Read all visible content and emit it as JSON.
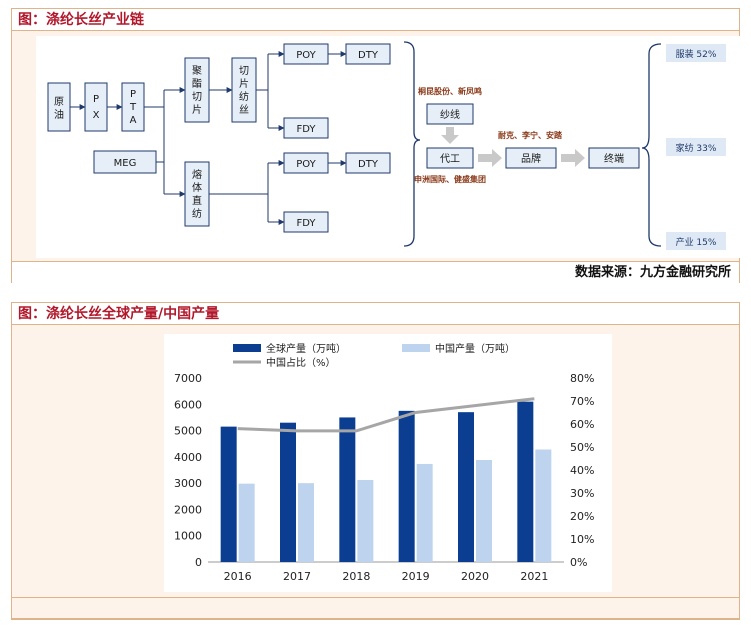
{
  "figure1": {
    "title": "图：涤纶长丝产业链",
    "source": "数据来源：九方金融研究所",
    "flow": {
      "crude": "原油",
      "px": "PX",
      "pta": "PTA",
      "meg": "MEG",
      "chip": "聚酯切片",
      "chip_spin": "切片纺丝",
      "melt": "熔体直纺",
      "poy1": "POY",
      "dty1": "DTY",
      "fdy1": "FDY",
      "poy2": "POY",
      "dty2": "DTY",
      "fdy2": "FDY",
      "company_top": "桐昆股份、新凤鸣",
      "yarn": "纱线",
      "oem": "代工",
      "company_bottom": "申洲国际、健盛集团",
      "brand_company": "耐克、李宁、安踏",
      "brand": "品牌",
      "terminal": "终端",
      "end_uses": [
        {
          "label": "服装 52%"
        },
        {
          "label": "家纺 33%"
        },
        {
          "label": "产业 15%"
        }
      ]
    }
  },
  "figure2": {
    "title": "图：涤纶长丝全球产量/中国产量",
    "legend": {
      "global": "全球产量（万吨）",
      "china": "中国产量（万吨）",
      "share": "中国占比（%）"
    },
    "colors": {
      "global": "#0b3d91",
      "china": "#bdd3ee",
      "share": "#a6a6a6"
    },
    "chart_data": {
      "type": "bar",
      "categories": [
        "2016",
        "2017",
        "2018",
        "2019",
        "2020",
        "2021"
      ],
      "series": [
        {
          "name": "全球产量（万吨）",
          "type": "bar",
          "axis": "left",
          "values": [
            5150,
            5300,
            5500,
            5750,
            5700,
            6100
          ]
        },
        {
          "name": "中国产量（万吨）",
          "type": "bar",
          "axis": "left",
          "values": [
            2980,
            3000,
            3120,
            3730,
            3880,
            4280
          ]
        },
        {
          "name": "中国占比（%）",
          "type": "line",
          "axis": "right",
          "values": [
            58,
            57,
            57,
            65,
            68,
            71
          ]
        }
      ],
      "ylim_left": [
        0,
        7000
      ],
      "ylim_right": [
        0,
        80
      ],
      "yticks_left": [
        "0",
        "1000",
        "2000",
        "3000",
        "4000",
        "5000",
        "6000",
        "7000"
      ],
      "yticks_right": [
        "0%",
        "10%",
        "20%",
        "30%",
        "40%",
        "50%",
        "60%",
        "70%",
        "80%"
      ],
      "grid": false,
      "legend_position": "top"
    }
  }
}
